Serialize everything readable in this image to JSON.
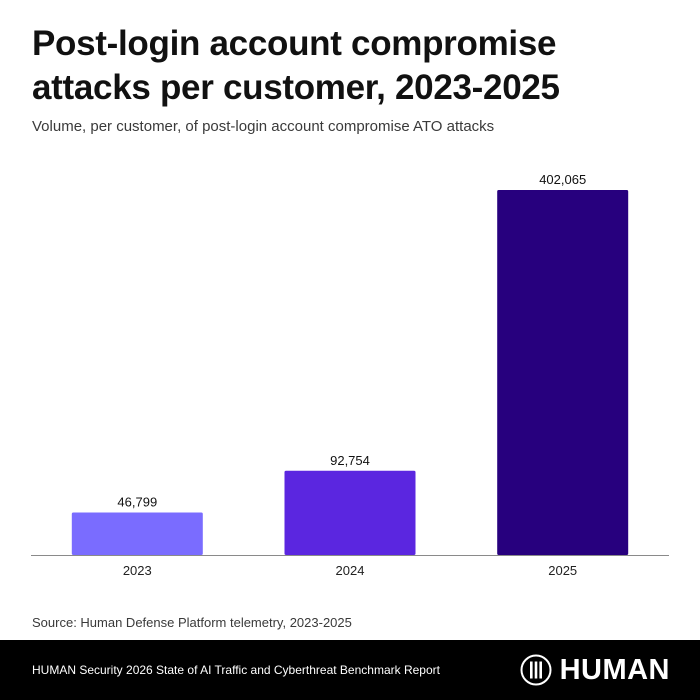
{
  "header": {
    "title": "Post-login account compromise attacks per customer, 2023-2025",
    "subtitle": "Volume, per customer, of post-login account compromise ATO attacks"
  },
  "chart_data": {
    "type": "bar",
    "title": "Post-login account compromise attacks per customer, 2023-2025",
    "subtitle": "Volume, per customer, of post-login account compromise ATO attacks",
    "categories": [
      "2023",
      "2024",
      "2025"
    ],
    "values": [
      46799,
      92754,
      402065
    ],
    "value_labels": [
      "46,799",
      "92,754",
      "402,065"
    ],
    "bar_colors": [
      "#7a6cff",
      "#5b26e0",
      "#27007e"
    ],
    "xlabel": "",
    "ylabel": "",
    "ylim": [
      0,
      402065
    ],
    "grid": false,
    "legend": "none"
  },
  "source": {
    "text": "Source: Human Defense Platform telemetry, 2023-2025"
  },
  "footer": {
    "report_text": "HUMAN Security 2026 State of AI Traffic and Cyberthreat Benchmark Report",
    "logo_text": "HUMAN",
    "logo_icon": "human-logo-icon"
  }
}
